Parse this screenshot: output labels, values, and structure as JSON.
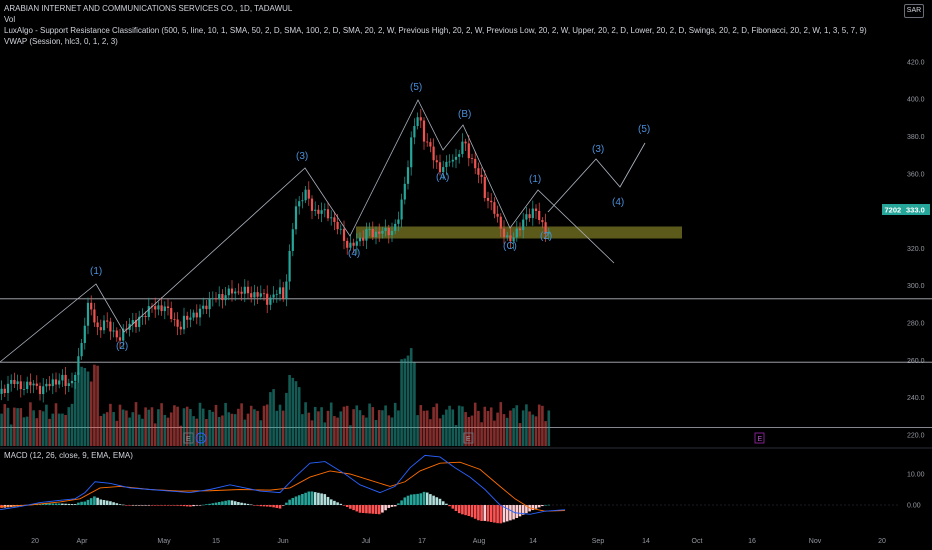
{
  "header": {
    "title": "ARABIAN INTERNET AND COMMUNICATIONS SERVICES CO., 1D, TADAWUL",
    "vol": "Vol",
    "luxalgo": "LuxAlgo - Support Resistance Classification (500, 5, line, 10, 1, SMA, 50, 2, D, SMA, 100, 2, D, SMA, 20, 2, W, Previous High, 20, 2, W, Previous Low, 20, 2, W, Upper, 20, 2, D, Lower, 20, 2, D, Swings, 20, 2, D, Fibonacci, 20, 2, W, 1, 3, 5, 7, 9)",
    "vwap": "VWAP (Session, hlc3, 0, 1, 2, 3)",
    "currency_button": "SAR"
  },
  "macd_label": "MACD (12, 26, close, 9, EMA, EMA)",
  "colors": {
    "up": "#26a69a",
    "down": "#ef5350",
    "wave": "#4a8fd9",
    "macd_line": "#2962ff",
    "signal_line": "#ff6d00",
    "zone": "#6b6a1e",
    "tag": "#26a69a"
  },
  "chart_data": {
    "type": "candlestick",
    "x_ticks": [
      "20",
      "Apr",
      "May",
      "15",
      "Jun",
      "Jul",
      "17",
      "Aug",
      "14",
      "Sep",
      "14",
      "Oct",
      "16",
      "Nov",
      "20"
    ],
    "y_ticks": [
      "420.0",
      "400.0",
      "380.0",
      "360.0",
      "340.0",
      "320.0",
      "300.0",
      "280.0",
      "260.0",
      "240.0",
      "220.0"
    ],
    "ylim": [
      213,
      428
    ],
    "macd_ticks": [
      "10.00",
      "0.00"
    ],
    "last_price": "333.0",
    "price_tag_left": "7202",
    "close_path": [
      [
        0,
        242
      ],
      [
        6,
        246
      ],
      [
        12,
        249
      ],
      [
        17,
        247
      ],
      [
        22,
        246
      ],
      [
        27,
        246
      ],
      [
        32,
        248
      ],
      [
        37,
        246
      ],
      [
        42,
        243
      ],
      [
        47,
        247
      ],
      [
        52,
        249
      ],
      [
        57,
        248
      ],
      [
        62,
        250
      ],
      [
        67,
        248
      ],
      [
        72,
        248
      ],
      [
        77,
        256
      ],
      [
        80,
        265
      ],
      [
        84,
        278
      ],
      [
        87,
        288
      ],
      [
        90,
        290
      ],
      [
        93,
        284
      ],
      [
        96,
        276
      ],
      [
        99,
        278
      ],
      [
        104,
        280
      ],
      [
        108,
        279
      ],
      [
        112,
        276
      ],
      [
        116,
        274
      ],
      [
        120,
        271
      ],
      [
        124,
        275
      ],
      [
        128,
        280
      ],
      [
        132,
        281
      ],
      [
        136,
        279
      ],
      [
        140,
        282
      ],
      [
        144,
        285
      ],
      [
        148,
        287
      ],
      [
        152,
        289
      ],
      [
        156,
        287
      ],
      [
        160,
        289
      ],
      [
        164,
        289
      ],
      [
        168,
        286
      ],
      [
        172,
        283
      ],
      [
        176,
        280
      ],
      [
        180,
        277
      ],
      [
        184,
        281
      ],
      [
        188,
        283
      ],
      [
        192,
        285
      ],
      [
        196,
        284
      ],
      [
        200,
        286
      ],
      [
        204,
        289
      ],
      [
        208,
        291
      ],
      [
        212,
        293
      ],
      [
        216,
        293
      ],
      [
        220,
        294
      ],
      [
        224,
        295
      ],
      [
        228,
        296
      ],
      [
        232,
        297
      ],
      [
        236,
        296
      ],
      [
        240,
        298
      ],
      [
        244,
        297
      ],
      [
        248,
        296
      ],
      [
        252,
        295
      ],
      [
        256,
        296
      ],
      [
        260,
        295
      ],
      [
        264,
        294
      ],
      [
        268,
        292
      ],
      [
        272,
        294
      ],
      [
        276,
        296
      ],
      [
        280,
        297
      ],
      [
        284,
        294
      ],
      [
        287,
        306
      ],
      [
        290,
        318
      ],
      [
        293,
        332
      ],
      [
        296,
        342
      ],
      [
        299,
        345
      ],
      [
        302,
        348
      ],
      [
        305,
        350
      ],
      [
        308,
        347
      ],
      [
        311,
        343
      ],
      [
        314,
        339
      ],
      [
        317,
        341
      ],
      [
        320,
        339
      ],
      [
        323,
        341
      ],
      [
        326,
        337
      ],
      [
        329,
        339
      ],
      [
        332,
        336
      ],
      [
        335,
        333
      ],
      [
        338,
        331
      ],
      [
        342,
        327
      ],
      [
        346,
        323
      ],
      [
        350,
        321
      ],
      [
        354,
        322
      ],
      [
        358,
        324
      ],
      [
        362,
        326
      ],
      [
        366,
        329
      ],
      [
        370,
        329
      ],
      [
        374,
        327
      ],
      [
        378,
        329
      ],
      [
        382,
        330
      ],
      [
        386,
        328
      ],
      [
        390,
        329
      ],
      [
        394,
        331
      ],
      [
        398,
        336
      ],
      [
        401,
        342
      ],
      [
        404,
        352
      ],
      [
        407,
        362
      ],
      [
        410,
        374
      ],
      [
        413,
        384
      ],
      [
        416,
        388
      ],
      [
        419,
        392
      ],
      [
        422,
        384
      ],
      [
        425,
        378
      ],
      [
        428,
        376
      ],
      [
        431,
        372
      ],
      [
        434,
        368
      ],
      [
        437,
        365
      ],
      [
        440,
        362
      ],
      [
        443,
        365
      ],
      [
        446,
        363
      ],
      [
        449,
        367
      ],
      [
        452,
        369
      ],
      [
        455,
        367
      ],
      [
        458,
        371
      ],
      [
        461,
        374
      ],
      [
        464,
        377
      ],
      [
        467,
        374
      ],
      [
        470,
        369
      ],
      [
        473,
        366
      ],
      [
        476,
        362
      ],
      [
        479,
        359
      ],
      [
        482,
        356
      ],
      [
        485,
        349
      ],
      [
        488,
        346
      ],
      [
        491,
        343
      ],
      [
        494,
        340
      ],
      [
        497,
        337
      ],
      [
        500,
        332
      ],
      [
        503,
        329
      ],
      [
        506,
        326
      ],
      [
        509,
        322
      ],
      [
        512,
        326
      ],
      [
        515,
        328
      ],
      [
        518,
        331
      ],
      [
        521,
        332
      ],
      [
        524,
        335
      ],
      [
        527,
        337
      ],
      [
        530,
        339
      ],
      [
        533,
        341
      ],
      [
        536,
        340
      ],
      [
        539,
        336
      ],
      [
        542,
        332
      ],
      [
        545,
        330
      ],
      [
        548,
        329
      ],
      [
        551,
        333
      ]
    ],
    "macd": {
      "xlim": [
        0,
        551
      ],
      "macd_line": [
        [
          0,
          -1.5
        ],
        [
          20,
          -0.5
        ],
        [
          40,
          0.8
        ],
        [
          60,
          1.5
        ],
        [
          75,
          2
        ],
        [
          85,
          4
        ],
        [
          95,
          7.5
        ],
        [
          110,
          7
        ],
        [
          130,
          5.5
        ],
        [
          150,
          5
        ],
        [
          170,
          4.5
        ],
        [
          190,
          4
        ],
        [
          210,
          5
        ],
        [
          230,
          6.5
        ],
        [
          260,
          4.5
        ],
        [
          280,
          4
        ],
        [
          295,
          9
        ],
        [
          310,
          13.5
        ],
        [
          325,
          14
        ],
        [
          345,
          10
        ],
        [
          360,
          6.5
        ],
        [
          380,
          4
        ],
        [
          395,
          6
        ],
        [
          410,
          12
        ],
        [
          425,
          16
        ],
        [
          440,
          15.5
        ],
        [
          455,
          12
        ],
        [
          470,
          9
        ],
        [
          485,
          5
        ],
        [
          500,
          0
        ],
        [
          515,
          -2.5
        ],
        [
          530,
          -3
        ],
        [
          545,
          -2
        ],
        [
          565,
          -1.5
        ]
      ],
      "signal_line": [
        [
          0,
          -0.5
        ],
        [
          30,
          0
        ],
        [
          60,
          1
        ],
        [
          80,
          2
        ],
        [
          100,
          5.5
        ],
        [
          120,
          6
        ],
        [
          150,
          5
        ],
        [
          180,
          4.5
        ],
        [
          210,
          4.6
        ],
        [
          240,
          5
        ],
        [
          270,
          4.8
        ],
        [
          290,
          5.5
        ],
        [
          310,
          9
        ],
        [
          330,
          11
        ],
        [
          350,
          10
        ],
        [
          370,
          8
        ],
        [
          390,
          6
        ],
        [
          405,
          7.5
        ],
        [
          420,
          11
        ],
        [
          440,
          13.5
        ],
        [
          460,
          13.8
        ],
        [
          480,
          11.5
        ],
        [
          500,
          6
        ],
        [
          515,
          2
        ],
        [
          530,
          -1
        ],
        [
          545,
          -2
        ],
        [
          565,
          -1.8
        ]
      ]
    }
  },
  "chart_markers": {
    "wave_labels": [
      "(1)",
      "(2)",
      "(3)",
      "(4)",
      "(5)",
      "(A)",
      "(B)",
      "(C)",
      "(1)",
      "(2)",
      "(3)",
      "(4)",
      "(5)"
    ],
    "event_badges": [
      "E",
      "D",
      "E",
      "E"
    ]
  }
}
